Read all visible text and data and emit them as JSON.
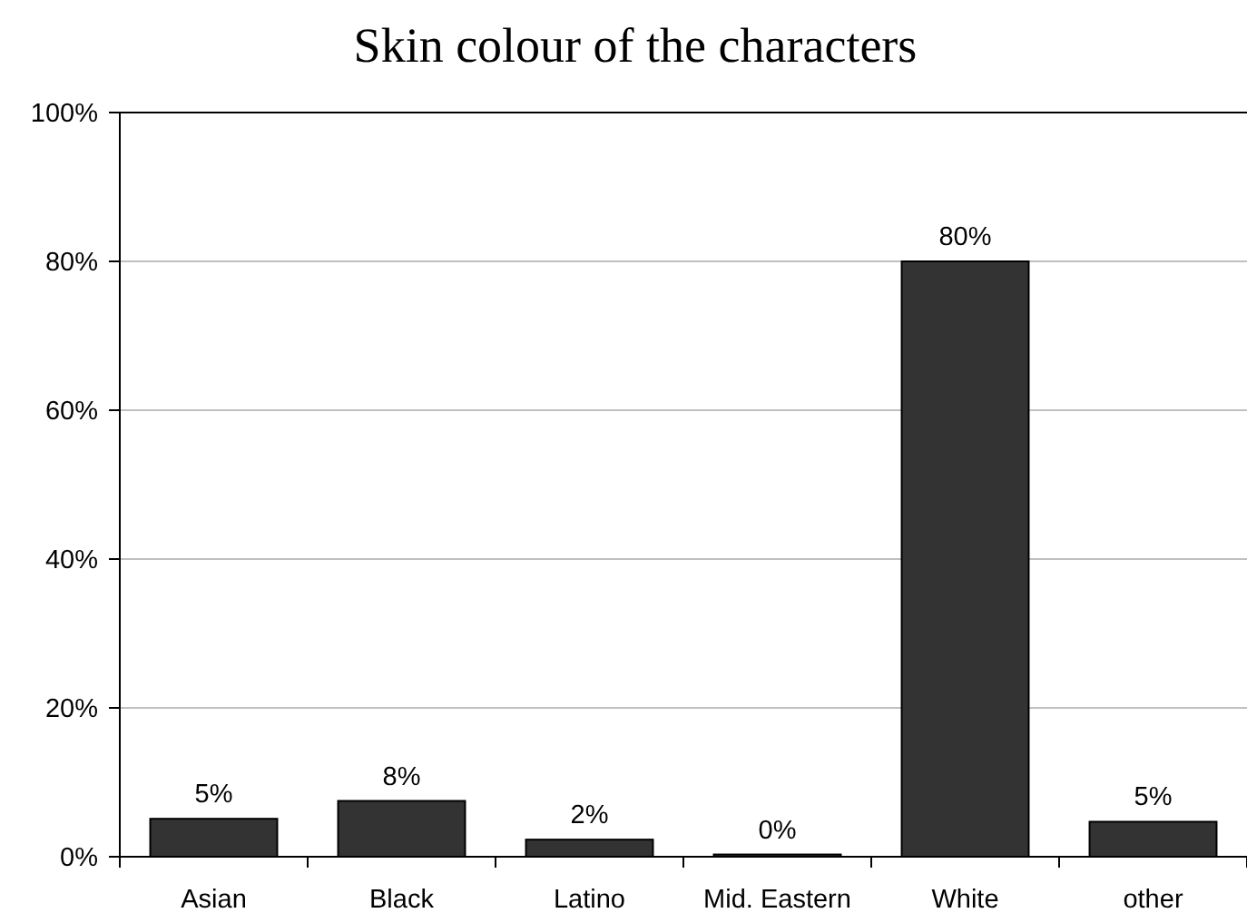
{
  "chart_data": {
    "type": "bar",
    "title": "Skin colour of the characters",
    "categories": [
      "Asian",
      "Black",
      "Latino",
      "Mid. Eastern",
      "White",
      "other"
    ],
    "values": [
      5.1,
      7.5,
      2.3,
      0.3,
      80,
      4.7
    ],
    "value_labels": [
      "5%",
      "8%",
      "2%",
      "0%",
      "80%",
      "5%"
    ],
    "color": "#333333",
    "ylim": [
      0,
      100
    ],
    "yticks": [
      {
        "value": 0,
        "label": "0%"
      },
      {
        "value": 20,
        "label": "20%"
      },
      {
        "value": 40,
        "label": "40%"
      },
      {
        "value": 60,
        "label": "60%"
      },
      {
        "value": 80,
        "label": "80%"
      },
      {
        "value": 100,
        "label": "100%"
      }
    ],
    "grid": "y"
  }
}
